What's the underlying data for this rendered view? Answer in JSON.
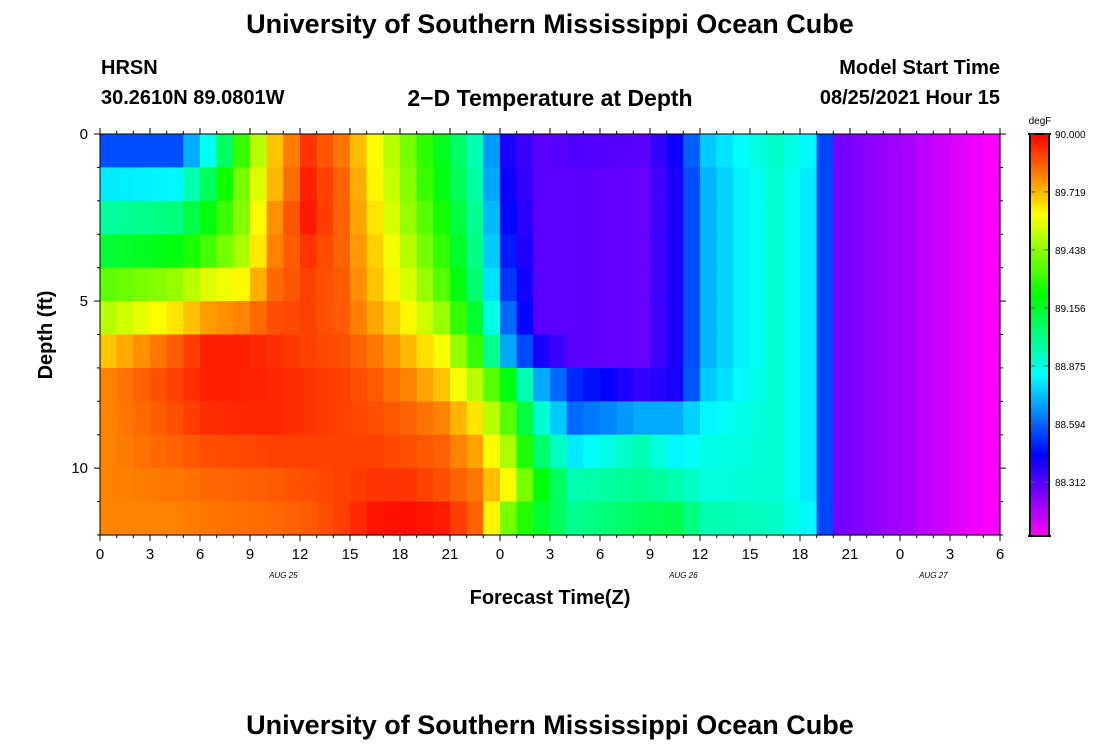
{
  "header": {
    "top_title": "University of Southern Mississippi Ocean Cube",
    "bottom_title": "University of Southern Mississippi Ocean Cube",
    "station": "HRSN",
    "coords": "30.2610N  89.0801W",
    "plot_title": "2−D Temperature at Depth",
    "model_label": "Model Start Time",
    "model_time": "08/25/2021 Hour 15"
  },
  "chart_data": {
    "type": "heatmap",
    "title": "2−D Temperature at Depth",
    "xlabel": "Forecast Time(Z)",
    "ylabel": "Depth (ft)",
    "x_ticks": [
      "0",
      "3",
      "6",
      "9",
      "12",
      "15",
      "18",
      "21",
      "0",
      "3",
      "6",
      "9",
      "12",
      "15",
      "18",
      "21",
      "0",
      "3",
      "6"
    ],
    "x_minor_ticks": 54,
    "date_labels": [
      {
        "text": "AUG 25",
        "tick_index": 11
      },
      {
        "text": "AUG 26",
        "tick_index": 35
      },
      {
        "text": "AUG 27",
        "tick_index": 50
      }
    ],
    "y_ticks": [
      "0",
      "5",
      "10"
    ],
    "y_range": [
      0,
      12
    ],
    "colorbar": {
      "units": "degF",
      "min": 88.05,
      "max": 90.0,
      "labels": [
        "90.000",
        "89.719",
        "89.438",
        "89.156",
        "88.875",
        "88.594",
        "88.312"
      ],
      "hues": [
        300,
        240,
        180,
        120,
        60,
        0
      ]
    },
    "columns": 54,
    "rows": 12,
    "profile_points": [
      {
        "x": 0,
        "v": [
          88.56,
          88.8,
          88.98,
          89.14,
          89.36,
          89.5,
          89.7,
          89.8,
          89.8,
          89.8,
          89.8,
          89.8
        ]
      },
      {
        "x": 4,
        "v": [
          88.56,
          88.82,
          89.03,
          89.2,
          89.45,
          89.65,
          89.86,
          89.9,
          89.88,
          89.85,
          89.82,
          89.8
        ]
      },
      {
        "x": 6,
        "v": [
          88.85,
          89.08,
          89.2,
          89.32,
          89.56,
          89.76,
          89.95,
          89.95,
          89.93,
          89.88,
          89.84,
          89.82
        ]
      },
      {
        "x": 8,
        "v": [
          89.3,
          89.4,
          89.42,
          89.48,
          89.62,
          89.8,
          89.95,
          89.95,
          89.94,
          89.89,
          89.85,
          89.83
        ]
      },
      {
        "x": 10,
        "v": [
          89.7,
          89.72,
          89.78,
          89.8,
          89.84,
          89.88,
          89.93,
          89.94,
          89.94,
          89.9,
          89.86,
          89.84
        ]
      },
      {
        "x": 12,
        "v": [
          89.92,
          89.95,
          89.96,
          89.92,
          89.9,
          89.9,
          89.9,
          89.92,
          89.92,
          89.9,
          89.88,
          89.86
        ]
      },
      {
        "x": 14,
        "v": [
          89.82,
          89.85,
          89.85,
          89.85,
          89.86,
          89.86,
          89.88,
          89.9,
          89.9,
          89.9,
          89.9,
          89.9
        ]
      },
      {
        "x": 16,
        "v": [
          89.6,
          89.62,
          89.65,
          89.68,
          89.7,
          89.75,
          89.82,
          89.86,
          89.88,
          89.9,
          89.92,
          89.97
        ]
      },
      {
        "x": 18,
        "v": [
          89.4,
          89.42,
          89.45,
          89.5,
          89.55,
          89.62,
          89.72,
          89.8,
          89.85,
          89.88,
          89.92,
          89.98
        ]
      },
      {
        "x": 20,
        "v": [
          89.18,
          89.2,
          89.25,
          89.3,
          89.35,
          89.45,
          89.6,
          89.7,
          89.8,
          89.85,
          89.88,
          89.96
        ]
      },
      {
        "x": 22,
        "v": [
          88.95,
          88.97,
          89.0,
          89.02,
          89.05,
          89.15,
          89.3,
          89.5,
          89.65,
          89.75,
          89.82,
          89.85
        ]
      },
      {
        "x": 24,
        "v": [
          88.4,
          88.42,
          88.45,
          88.48,
          88.52,
          88.6,
          88.7,
          89.2,
          89.35,
          89.48,
          89.6,
          89.4
        ]
      },
      {
        "x": 26,
        "v": [
          88.3,
          88.3,
          88.3,
          88.3,
          88.3,
          88.3,
          88.4,
          88.7,
          88.9,
          89.05,
          89.2,
          89.15
        ]
      },
      {
        "x": 28,
        "v": [
          88.32,
          88.3,
          88.3,
          88.3,
          88.3,
          88.3,
          88.3,
          88.5,
          88.6,
          88.8,
          88.95,
          89.0
        ]
      },
      {
        "x": 32,
        "v": [
          88.3,
          88.28,
          88.28,
          88.28,
          88.28,
          88.28,
          88.28,
          88.36,
          88.7,
          88.95,
          89.0,
          89.08
        ]
      },
      {
        "x": 34,
        "v": [
          88.42,
          88.4,
          88.4,
          88.4,
          88.4,
          88.4,
          88.4,
          88.4,
          88.7,
          88.82,
          88.95,
          89.1
        ]
      },
      {
        "x": 36,
        "v": [
          88.75,
          88.72,
          88.72,
          88.72,
          88.72,
          88.72,
          88.72,
          88.75,
          88.82,
          88.86,
          88.88,
          88.95
        ]
      },
      {
        "x": 40,
        "v": [
          88.92,
          88.9,
          88.9,
          88.9,
          88.9,
          88.9,
          88.9,
          88.9,
          88.9,
          88.9,
          88.9,
          88.92
        ]
      },
      {
        "x": 42,
        "v": [
          88.82,
          88.8,
          88.8,
          88.8,
          88.8,
          88.8,
          88.8,
          88.8,
          88.8,
          88.8,
          88.8,
          88.82
        ]
      },
      {
        "x": 43,
        "v": [
          88.55,
          88.55,
          88.55,
          88.55,
          88.55,
          88.55,
          88.55,
          88.55,
          88.55,
          88.55,
          88.55,
          88.55
        ]
      },
      {
        "x": 44,
        "v": [
          88.26,
          88.26,
          88.26,
          88.26,
          88.26,
          88.26,
          88.26,
          88.26,
          88.26,
          88.26,
          88.26,
          88.26
        ]
      },
      {
        "x": 48,
        "v": [
          88.18,
          88.18,
          88.18,
          88.18,
          88.18,
          88.18,
          88.18,
          88.18,
          88.18,
          88.18,
          88.18,
          88.18
        ]
      },
      {
        "x": 53,
        "v": [
          88.05,
          88.05,
          88.05,
          88.05,
          88.05,
          88.05,
          88.05,
          88.05,
          88.05,
          88.05,
          88.05,
          88.05
        ]
      }
    ]
  }
}
